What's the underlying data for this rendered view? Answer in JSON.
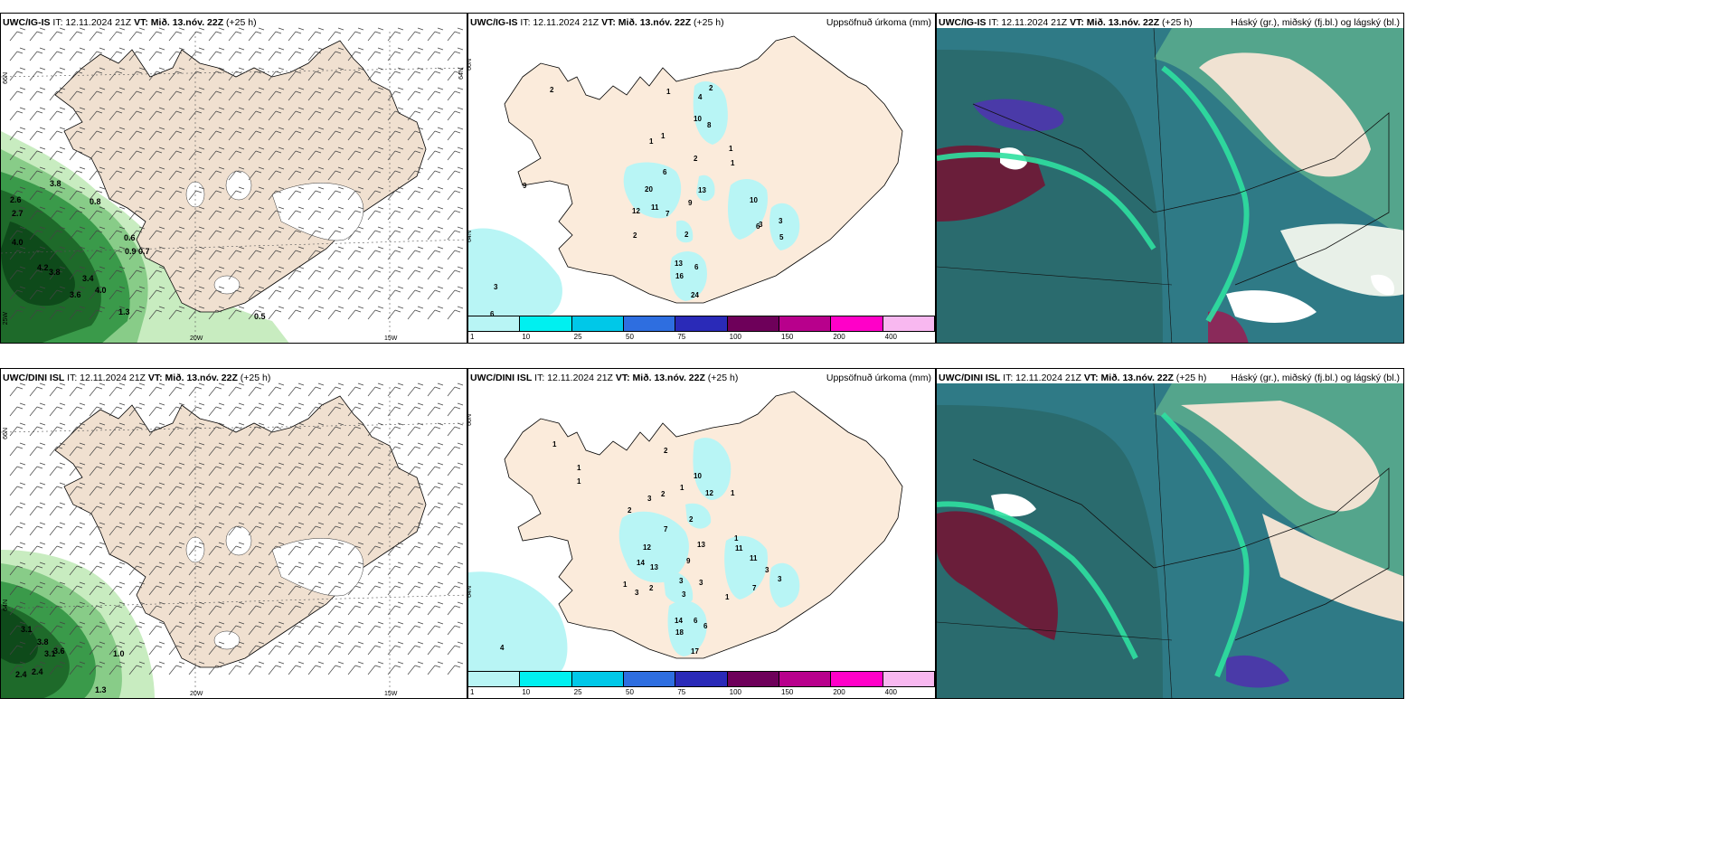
{
  "panels": {
    "r1c1": {
      "model": "UWC/IG-IS",
      "it": " IT: 12.11.2024 21Z ",
      "vt": "VT: Mið. 13.nóv. 22Z",
      "lead": " (+25 h)",
      "right": ""
    },
    "r1c2": {
      "model": "UWC/IG-IS",
      "it": " IT: 12.11.2024 21Z ",
      "vt": "VT: Mið. 13.nóv. 22Z",
      "lead": " (+25 h)",
      "right": "Uppsöfnuð úrkoma (mm)"
    },
    "r1c3": {
      "model": "UWC/IG-IS",
      "it": " IT: 12.11.2024 21Z ",
      "vt": "VT: Mið. 13.nóv. 22Z",
      "lead": " (+25 h)",
      "right": "Háský (gr.), miðský (fj.bl.) og lágský (bl.)"
    },
    "r2c1": {
      "model": "UWC/DINI ISL",
      "it": " IT: 12.11.2024 21Z ",
      "vt": "VT: Mið. 13.nóv. 22Z",
      "lead": " (+25 h)",
      "right": ""
    },
    "r2c2": {
      "model": "UWC/DINI ISL",
      "it": " IT: 12.11.2024 21Z ",
      "vt": "VT: Mið. 13.nóv. 22Z",
      "lead": " (+25 h)",
      "right": "Uppsöfnuð úrkoma (mm)"
    },
    "r2c3": {
      "model": "UWC/DINI ISL",
      "it": " IT: 12.11.2024 21Z ",
      "vt": "VT: Mið. 13.nóv. 22Z",
      "lead": " (+25 h)",
      "right": "Háský (gr.), miðský (fj.bl.) og lágský (bl.)"
    }
  },
  "axes": {
    "lat66": "66N",
    "lat64": "64N",
    "lon20": "20W",
    "lon15": "15W",
    "lon25": "25W"
  },
  "colorbar": {
    "labels": [
      "1",
      "10",
      "25",
      "50",
      "75",
      "100",
      "150",
      "200",
      "400"
    ],
    "colors": [
      "#b8f5f5",
      "#00f0f0",
      "#00c8e8",
      "#2e6ee0",
      "#2a2ab8",
      "#6e005a",
      "#b8008c",
      "#ff00c8",
      "#f8b8f0"
    ]
  },
  "wave_values_r1": [
    "2.6",
    "2.7",
    "4.0",
    "0.8",
    "0.6",
    "0.9",
    "0.7",
    "4.2",
    "3.8",
    "3.4",
    "4.0",
    "3.6",
    "1.3",
    "0.5",
    "3.8"
  ],
  "wave_values_r2": [
    "3.1",
    "3.8",
    "3.1",
    "3.6",
    "1.0",
    "2.4",
    "2.4",
    "1.3"
  ],
  "precip_values_r1": [
    "2",
    "1",
    "4",
    "2",
    "10",
    "8",
    "1",
    "1",
    "1",
    "2",
    "6",
    "20",
    "13",
    "12",
    "11",
    "7",
    "9",
    "3",
    "10",
    "3",
    "5",
    "2",
    "2",
    "13",
    "6",
    "16",
    "24",
    "3",
    "6",
    "1",
    "6",
    "9"
  ],
  "precip_values_r2": [
    "1",
    "1",
    "1",
    "2",
    "10",
    "12",
    "1",
    "2",
    "3",
    "1",
    "2",
    "2",
    "7",
    "13",
    "12",
    "14",
    "13",
    "9",
    "1",
    "11",
    "3",
    "7",
    "3",
    "1",
    "3",
    "3",
    "3",
    "1",
    "2",
    "3",
    "14",
    "6",
    "18",
    "17",
    "4",
    "6",
    "11"
  ]
}
